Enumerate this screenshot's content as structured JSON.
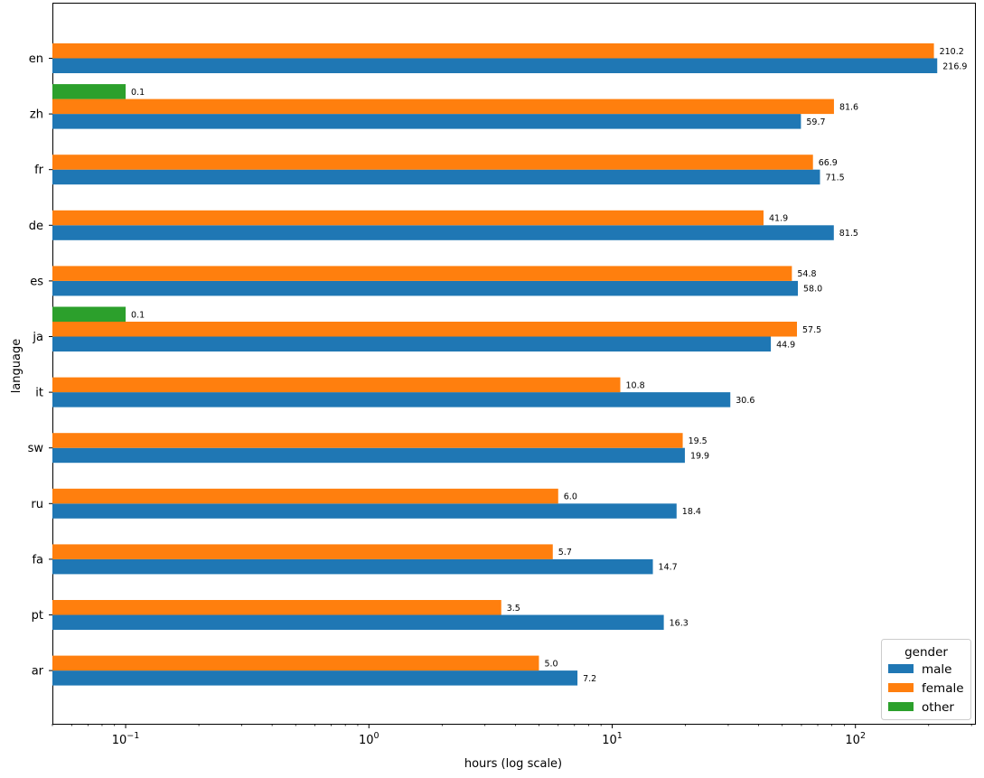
{
  "chart_data": {
    "type": "bar",
    "orientation": "horizontal",
    "xscale": "log",
    "xlabel": "hours (log scale)",
    "ylabel": "language",
    "xlim": [
      0.05,
      310
    ],
    "x_tick_labels": [
      {
        "base": "10",
        "exp": "−1",
        "value": 0.1
      },
      {
        "base": "10",
        "exp": "0",
        "value": 1
      },
      {
        "base": "10",
        "exp": "1",
        "value": 10
      },
      {
        "base": "10",
        "exp": "2",
        "value": 100
      }
    ],
    "categories": [
      "en",
      "zh",
      "fr",
      "de",
      "es",
      "ja",
      "it",
      "sw",
      "ru",
      "fa",
      "pt",
      "ar"
    ],
    "series": [
      {
        "name": "male",
        "color": "#1f77b4",
        "values": [
          216.9,
          59.7,
          71.5,
          81.5,
          58.0,
          44.9,
          30.6,
          19.9,
          18.4,
          14.7,
          16.3,
          7.2
        ],
        "labels": [
          "216.9",
          "59.7",
          "71.5",
          "81.5",
          "58.0",
          "44.9",
          "30.6",
          "19.9",
          "18.4",
          "14.7",
          "16.3",
          "7.2"
        ]
      },
      {
        "name": "female",
        "color": "#ff7f0e",
        "values": [
          210.2,
          81.6,
          66.9,
          41.9,
          54.8,
          57.5,
          10.8,
          19.5,
          6.0,
          5.7,
          3.5,
          5.0
        ],
        "labels": [
          "210.2",
          "81.6",
          "66.9",
          "41.9",
          "54.8",
          "57.5",
          "10.8",
          "19.5",
          "6.0",
          "5.7",
          "3.5",
          "5.0"
        ]
      },
      {
        "name": "other",
        "color": "#2ca02c",
        "values": [
          null,
          0.1,
          null,
          null,
          null,
          0.1,
          null,
          null,
          null,
          null,
          null,
          null
        ],
        "labels": [
          null,
          "0.1",
          null,
          null,
          null,
          "0.1",
          null,
          null,
          null,
          null,
          null,
          null
        ]
      }
    ],
    "legend": {
      "title": "gender",
      "position": "lower-right"
    },
    "grid": false
  }
}
